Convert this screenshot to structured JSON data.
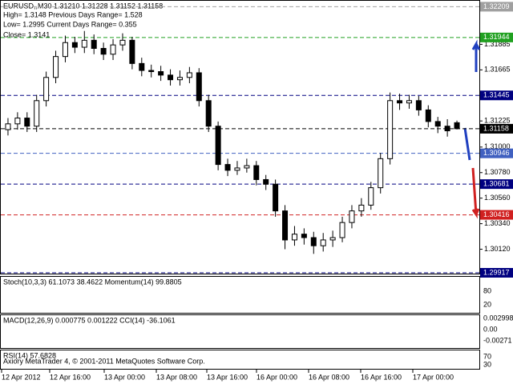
{
  "header": {
    "lines": [
      "EURUSD,,M30  1.31210 1.31228 1.31152 1.31158",
      "High= 1.3148    Previous Days Range= 1.528",
      "Low= 1.2995    Current Days Range= 0.355",
      "Close= 1.3141"
    ]
  },
  "chart_data": {
    "type": "candlestick",
    "open": [
      1.3115,
      1.312,
      1.3125,
      1.3118,
      1.314,
      1.316,
      1.3178,
      1.319,
      1.3186,
      1.3192,
      1.3185,
      1.318,
      1.3188,
      1.3192,
      1.3172,
      1.3166,
      1.3165,
      1.3162,
      1.3158,
      1.316,
      1.3164,
      1.314,
      1.3118,
      1.3085,
      1.308,
      1.3082,
      1.3084,
      1.3072,
      1.3068,
      1.3045,
      1.302,
      1.3025,
      1.3022,
      1.3015,
      1.302,
      1.3022,
      1.3035,
      1.3045,
      1.305,
      1.3065,
      1.309,
      1.314,
      1.3138,
      1.314,
      1.3132,
      1.3122,
      1.3118,
      1.3121
    ],
    "high": [
      1.3125,
      1.313,
      1.313,
      1.3145,
      1.3165,
      1.3183,
      1.3196,
      1.3195,
      1.32,
      1.3197,
      1.319,
      1.3193,
      1.3198,
      1.3195,
      1.3177,
      1.3171,
      1.317,
      1.3167,
      1.3166,
      1.3169,
      1.3168,
      1.3145,
      1.3122,
      1.309,
      1.3088,
      1.309,
      1.3088,
      1.3076,
      1.3072,
      1.305,
      1.3032,
      1.303,
      1.3027,
      1.3026,
      1.3028,
      1.304,
      1.305,
      1.3056,
      1.307,
      1.3095,
      1.3147,
      1.3146,
      1.3145,
      1.3144,
      1.3136,
      1.3126,
      1.3124,
      1.31228
    ],
    "low": [
      1.311,
      1.3115,
      1.3113,
      1.3113,
      1.3135,
      1.3155,
      1.3173,
      1.3181,
      1.3181,
      1.318,
      1.3175,
      1.3175,
      1.3183,
      1.3167,
      1.3161,
      1.316,
      1.3157,
      1.3153,
      1.3153,
      1.3155,
      1.3135,
      1.3113,
      1.308,
      1.3075,
      1.3076,
      1.3078,
      1.3067,
      1.3063,
      1.304,
      1.3012,
      1.3015,
      1.3016,
      1.3008,
      1.301,
      1.3014,
      1.3018,
      1.303,
      1.304,
      1.3046,
      1.306,
      1.3085,
      1.3132,
      1.3133,
      1.3127,
      1.3117,
      1.3112,
      1.3109,
      1.31152
    ],
    "close": [
      1.312,
      1.3125,
      1.3118,
      1.314,
      1.316,
      1.3178,
      1.319,
      1.3186,
      1.3192,
      1.3185,
      1.318,
      1.3188,
      1.3192,
      1.3172,
      1.3166,
      1.3165,
      1.3162,
      1.3158,
      1.316,
      1.3164,
      1.314,
      1.3118,
      1.3085,
      1.308,
      1.3082,
      1.3084,
      1.3072,
      1.3068,
      1.3045,
      1.302,
      1.3025,
      1.3022,
      1.3015,
      1.302,
      1.3022,
      1.3035,
      1.3045,
      1.305,
      1.3065,
      1.309,
      1.314,
      1.3138,
      1.314,
      1.3132,
      1.3122,
      1.3118,
      1.3114,
      1.31158
    ],
    "up_color": "#ffffff",
    "down_color": "#000000",
    "wick_color": "#000000",
    "ylim": [
      1.2991,
      1.3226
    ],
    "yticks": [
      1.31885,
      1.31665,
      1.31225,
      {
        "value": 1.31,
        "label": "1.31000"
      },
      {
        "value": 1.3078,
        "label": "1.30780"
      },
      {
        "value": 1.3056,
        "label": "1.30560"
      },
      {
        "value": 1.3034,
        "label": "1.30340"
      },
      {
        "value": 1.3012,
        "label": "1.30120"
      }
    ],
    "levels": [
      {
        "value": 1.32209,
        "label": "1.32209",
        "color": "#a0a0a0"
      },
      {
        "value": 1.31944,
        "label": "1.31944",
        "color": "#20a020"
      },
      {
        "value": 1.31445,
        "label": "1.31445",
        "color": "#000080"
      },
      {
        "value": 1.31158,
        "label": "1.31158",
        "color": "#000000"
      },
      {
        "value": 1.30946,
        "label": "1.30946",
        "color": "#4060c0"
      },
      {
        "value": 1.30681,
        "label": "1.30681",
        "color": "#000080"
      },
      {
        "value": 1.30416,
        "label": "1.30416",
        "color": "#d02020"
      },
      {
        "value": 1.29917,
        "label": "1.29917",
        "color": "#000080"
      }
    ],
    "x_labels": [
      "12 Apr 2012",
      "12 Apr 16:00",
      "13 Apr 00:00",
      "13 Apr 08:00",
      "13 Apr 16:00",
      "16 Apr 00:00",
      "16 Apr 08:00",
      "16 Apr 16:00",
      "17 Apr 00:00"
    ]
  },
  "subwindows": [
    {
      "label": "Stoch(10,3,3) 61.1073 38.4622  Momentum(14) 99.8805",
      "axis_labels": [
        "80",
        "20"
      ]
    },
    {
      "label": "MACD(12,26,9) 0.000775 0.001222  CCI(14) -36.1061",
      "axis_labels": [
        "0.002998",
        "0.00",
        "-0.00271"
      ]
    },
    {
      "label": "RSI(14) 57.6828",
      "axis_labels": [
        "70",
        "30"
      ]
    }
  ],
  "footer": "Axiory MetaTrader 4, © 2001-2011 MetaQuotes Software Corp."
}
